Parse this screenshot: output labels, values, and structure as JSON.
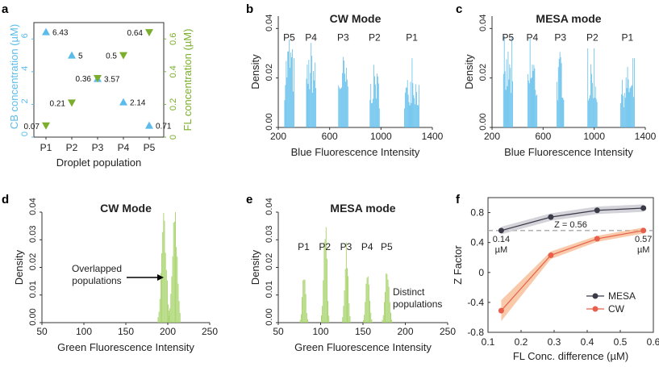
{
  "colors": {
    "blue": "#5BBCEB",
    "green": "#7AAE2C",
    "green_fill": "#A6D36A",
    "mesa": "#3A3A48",
    "mesa_band": "#C4C4CC",
    "cw": "#E8604C",
    "cw_band": "#F6B88E",
    "ref_line": "#A8A8A8"
  },
  "chart_data": [
    {
      "panel": "a",
      "type": "scatter",
      "xlabel": "Droplet population",
      "categories": [
        "P1",
        "P2",
        "P3",
        "P4",
        "P5"
      ],
      "y_left": {
        "label": "CB concentration (µM)",
        "lim": [
          0,
          7
        ],
        "ticks": [
          "0",
          "2",
          "4",
          "6"
        ],
        "tick_values": [
          0,
          2,
          4,
          6
        ]
      },
      "y_right": {
        "label": "FL concentration (µM)",
        "lim": [
          0,
          0.7
        ],
        "ticks": [
          "0",
          "0.2",
          "0.4",
          "0.6"
        ],
        "tick_values": [
          0,
          0.2,
          0.4,
          0.6
        ]
      },
      "series": [
        {
          "name": "CB",
          "marker": "triangle-up",
          "axis": "left",
          "values": [
            6.43,
            5,
            3.57,
            2.14,
            0.71
          ],
          "labels": [
            "6.43",
            "5",
            "3.57",
            "2.14",
            "0.71"
          ]
        },
        {
          "name": "FL",
          "marker": "triangle-down",
          "axis": "right",
          "values": [
            0.07,
            0.21,
            0.36,
            0.5,
            0.64
          ],
          "labels": [
            "0.07",
            "0.21",
            "0.36",
            "0.5",
            "0.64"
          ]
        }
      ]
    },
    {
      "panel": "b",
      "type": "bar",
      "title": "CW Mode",
      "xlabel": "Blue Fluorescence Intensity",
      "ylabel": "Density",
      "xlim": [
        200,
        1400
      ],
      "ylim": [
        0,
        0.045
      ],
      "x_ticks": [
        "200",
        "600",
        "1000",
        "1400"
      ],
      "x_tick_values": [
        200,
        600,
        1000,
        1400
      ],
      "y_ticks": [
        "0.00",
        "0.02",
        "0.04"
      ],
      "y_tick_values": [
        0,
        0.02,
        0.04
      ],
      "peaks": [
        {
          "label": "P5",
          "center": 285,
          "width": 75,
          "height": 0.045
        },
        {
          "label": "P4",
          "center": 455,
          "width": 75,
          "height": 0.04
        },
        {
          "label": "P3",
          "center": 705,
          "width": 75,
          "height": 0.034
        },
        {
          "label": "P2",
          "center": 950,
          "width": 75,
          "height": 0.03
        },
        {
          "label": "P1",
          "center": 1240,
          "width": 120,
          "height": 0.028
        }
      ],
      "peak_labels_y": 0.037
    },
    {
      "panel": "c",
      "type": "bar",
      "title": "MESA mode",
      "xlabel": "Blue Fluorescence Intensity",
      "ylabel": "Density",
      "xlim": [
        200,
        1400
      ],
      "ylim": [
        0,
        0.045
      ],
      "x_ticks": [
        "200",
        "600",
        "1000",
        "1400"
      ],
      "x_tick_values": [
        200,
        600,
        1000,
        1400
      ],
      "y_ticks": [
        "0.00",
        "0.02",
        "0.04"
      ],
      "y_tick_values": [
        0,
        0.02,
        0.04
      ],
      "peaks": [
        {
          "label": "P5",
          "center": 325,
          "width": 75,
          "height": 0.037
        },
        {
          "label": "P4",
          "center": 515,
          "width": 75,
          "height": 0.036
        },
        {
          "label": "P3",
          "center": 735,
          "width": 60,
          "height": 0.037
        },
        {
          "label": "P2",
          "center": 985,
          "width": 75,
          "height": 0.032
        },
        {
          "label": "P1",
          "center": 1260,
          "width": 110,
          "height": 0.028
        }
      ],
      "peak_labels_y": 0.037
    },
    {
      "panel": "d",
      "type": "bar",
      "title": "CW Mode",
      "xlabel": "Green Fluorescence Intensity",
      "ylabel": "Density",
      "xlim": [
        50,
        250
      ],
      "ylim": [
        0,
        0.04
      ],
      "x_ticks": [
        "50",
        "100",
        "150",
        "200",
        "250"
      ],
      "x_tick_values": [
        50,
        100,
        150,
        200,
        250
      ],
      "y_ticks": [
        "0.00",
        "0.01",
        "0.02",
        "0.03",
        "0.04"
      ],
      "y_tick_values": [
        0,
        0.01,
        0.02,
        0.03,
        0.04
      ],
      "peaks": [
        {
          "center": 195,
          "width": 14,
          "height": 0.037
        },
        {
          "center": 208,
          "width": 14,
          "height": 0.039
        }
      ],
      "annotation": {
        "lines": [
          "Overlapped",
          "populations"
        ]
      }
    },
    {
      "panel": "e",
      "type": "bar",
      "title": "MESA mode",
      "xlabel": "Green Fluorescence Intensity",
      "ylabel": "Density",
      "xlim": [
        50,
        250
      ],
      "ylim": [
        0,
        0.04
      ],
      "x_ticks": [
        "50",
        "100",
        "150",
        "200",
        "250"
      ],
      "x_tick_values": [
        50,
        100,
        150,
        200,
        250
      ],
      "y_ticks": [
        "0.00",
        "0.01",
        "0.02",
        "0.03",
        "0.04"
      ],
      "y_tick_values": [
        0,
        0.01,
        0.02,
        0.03,
        0.04
      ],
      "peaks": [
        {
          "label": "P1",
          "center": 80,
          "width": 9,
          "height": 0.018
        },
        {
          "label": "P2",
          "center": 105,
          "width": 9,
          "height": 0.04
        },
        {
          "label": "P3",
          "center": 130,
          "width": 9,
          "height": 0.03
        },
        {
          "label": "P4",
          "center": 155,
          "width": 10,
          "height": 0.018
        },
        {
          "label": "P5",
          "center": 178,
          "width": 11,
          "height": 0.021
        }
      ],
      "peak_labels_y": 0.028,
      "annotation": {
        "lines": [
          "Distinct",
          "populations"
        ]
      }
    },
    {
      "panel": "f",
      "type": "line",
      "xlabel": "FL Conc. difference (µM)",
      "ylabel": "Z Factor",
      "xlim": [
        0.1,
        0.6
      ],
      "ylim": [
        -0.8,
        1.0
      ],
      "x_ticks": [
        "0.1",
        "0.2",
        "0.3",
        "0.4",
        "0.5",
        "0.6"
      ],
      "x_tick_values": [
        0.1,
        0.2,
        0.3,
        0.4,
        0.5,
        0.6
      ],
      "y_ticks": [
        "-0.8",
        "-0.4",
        "0",
        "0.4",
        "0.8"
      ],
      "y_tick_values": [
        -0.8,
        -0.4,
        0,
        0.4,
        0.8
      ],
      "x": [
        0.14,
        0.29,
        0.43,
        0.57
      ],
      "series": [
        {
          "name": "MESA",
          "values": [
            0.56,
            0.74,
            0.83,
            0.86
          ],
          "band": 0.05
        },
        {
          "name": "CW",
          "values": [
            -0.51,
            0.23,
            0.45,
            0.56
          ],
          "band": [
            0.14,
            0.05,
            0.04,
            0.04
          ]
        }
      ],
      "reference_line": {
        "y": 0.56,
        "label": "Z = 0.56"
      },
      "annotations": [
        {
          "lines": [
            "0.14",
            "µM"
          ],
          "x": 0.14
        },
        {
          "lines": [
            "0.57",
            "µM"
          ],
          "x": 0.57
        }
      ],
      "legend": {
        "placement": "bottom-right",
        "entries": [
          "MESA",
          "CW"
        ]
      }
    }
  ]
}
